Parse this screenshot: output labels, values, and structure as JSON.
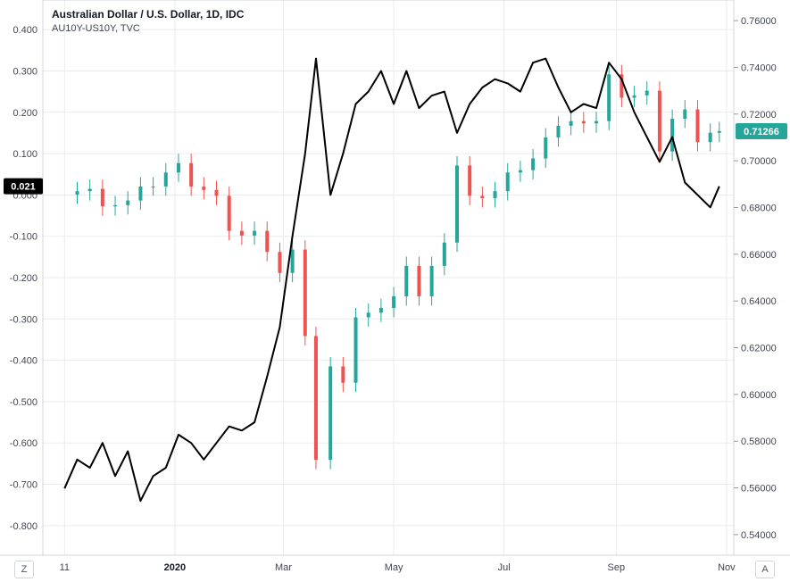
{
  "header": {
    "title": "Australian Dollar / U.S. Dollar, 1D, IDC",
    "subtitle": "AU10Y-US10Y, TVC"
  },
  "controls": {
    "left_button": "Z",
    "right_button": "A"
  },
  "colors": {
    "up": "#26a69a",
    "down": "#ef5350",
    "line": "#000000",
    "grid": "#e9ebef",
    "price_tag": "#26a69a",
    "spread_tag": "#000000"
  },
  "chart_data": {
    "type": "line",
    "title": "Australian Dollar / U.S. Dollar, 1D, IDC",
    "subtitle": "AU10Y-US10Y, TVC",
    "x_ticks": [
      "11",
      "2020",
      "Mar",
      "May",
      "Jul",
      "Sep",
      "Nov"
    ],
    "left_axis": {
      "ticks": [
        "0.400",
        "0.300",
        "0.200",
        "0.100",
        "0.000",
        "-0.100",
        "-0.200",
        "-0.300",
        "-0.400",
        "-0.500",
        "-0.600",
        "-0.700",
        "-0.800"
      ],
      "range": [
        -0.85,
        0.45
      ]
    },
    "right_axis": {
      "ticks": [
        "0.76000",
        "0.74000",
        "0.72000",
        "0.70000",
        "0.68000",
        "0.66000",
        "0.64000",
        "0.62000",
        "0.60000",
        "0.58000",
        "0.56000",
        "0.54000"
      ],
      "range": [
        0.535,
        0.765
      ]
    },
    "last_values": {
      "spread": "0.021",
      "price": "0.71266"
    },
    "grid": true,
    "series": [
      {
        "name": "AUDUSD",
        "style": "candlestick",
        "axis": "right",
        "points": [
          [
            "2019-11-01",
            0.6855
          ],
          [
            "2019-11-08",
            0.687
          ],
          [
            "2019-11-15",
            0.688
          ],
          [
            "2019-11-22",
            0.6805
          ],
          [
            "2019-11-29",
            0.681
          ],
          [
            "2019-12-06",
            0.683
          ],
          [
            "2019-12-13",
            0.689
          ],
          [
            "2019-12-20",
            0.689
          ],
          [
            "2019-12-27",
            0.695
          ],
          [
            "2020-01-03",
            0.699
          ],
          [
            "2020-01-10",
            0.689
          ],
          [
            "2020-01-17",
            0.6875
          ],
          [
            "2020-01-24",
            0.685
          ],
          [
            "2020-01-31",
            0.67
          ],
          [
            "2020-02-07",
            0.668
          ],
          [
            "2020-02-14",
            0.67
          ],
          [
            "2020-02-21",
            0.661
          ],
          [
            "2020-02-28",
            0.652
          ],
          [
            "2020-03-06",
            0.662
          ],
          [
            "2020-03-13",
            0.625
          ],
          [
            "2020-03-19",
            0.572
          ],
          [
            "2020-03-27",
            0.612
          ],
          [
            "2020-04-03",
            0.605
          ],
          [
            "2020-04-10",
            0.633
          ],
          [
            "2020-04-17",
            0.635
          ],
          [
            "2020-04-24",
            0.637
          ],
          [
            "2020-05-01",
            0.642
          ],
          [
            "2020-05-08",
            0.655
          ],
          [
            "2020-05-15",
            0.642
          ],
          [
            "2020-05-22",
            0.655
          ],
          [
            "2020-05-29",
            0.665
          ],
          [
            "2020-06-05",
            0.698
          ],
          [
            "2020-06-12",
            0.685
          ],
          [
            "2020-06-19",
            0.684
          ],
          [
            "2020-06-26",
            0.687
          ],
          [
            "2020-07-03",
            0.695
          ],
          [
            "2020-07-10",
            0.696
          ],
          [
            "2020-07-17",
            0.701
          ],
          [
            "2020-07-24",
            0.71
          ],
          [
            "2020-07-31",
            0.715
          ],
          [
            "2020-08-07",
            0.717
          ],
          [
            "2020-08-14",
            0.716
          ],
          [
            "2020-08-21",
            0.717
          ],
          [
            "2020-08-28",
            0.737
          ],
          [
            "2020-09-04",
            0.727
          ],
          [
            "2020-09-11",
            0.728
          ],
          [
            "2020-09-18",
            0.73
          ],
          [
            "2020-09-25",
            0.704
          ],
          [
            "2020-10-02",
            0.718
          ],
          [
            "2020-10-09",
            0.722
          ],
          [
            "2020-10-16",
            0.708
          ],
          [
            "2020-10-23",
            0.712
          ],
          [
            "2020-10-28",
            0.7127
          ]
        ]
      },
      {
        "name": "AU10Y-US10Y",
        "style": "line",
        "axis": "left",
        "points": [
          [
            "2019-11-01",
            -0.71
          ],
          [
            "2019-11-08",
            -0.64
          ],
          [
            "2019-11-15",
            -0.66
          ],
          [
            "2019-11-22",
            -0.6
          ],
          [
            "2019-11-29",
            -0.68
          ],
          [
            "2019-12-06",
            -0.62
          ],
          [
            "2019-12-13",
            -0.74
          ],
          [
            "2019-12-20",
            -0.68
          ],
          [
            "2019-12-27",
            -0.66
          ],
          [
            "2020-01-03",
            -0.58
          ],
          [
            "2020-01-10",
            -0.6
          ],
          [
            "2020-01-17",
            -0.64
          ],
          [
            "2020-01-24",
            -0.6
          ],
          [
            "2020-01-31",
            -0.56
          ],
          [
            "2020-02-07",
            -0.57
          ],
          [
            "2020-02-14",
            -0.55
          ],
          [
            "2020-02-21",
            -0.44
          ],
          [
            "2020-02-28",
            -0.32
          ],
          [
            "2020-03-06",
            -0.1
          ],
          [
            "2020-03-13",
            0.1
          ],
          [
            "2020-03-19",
            0.33
          ],
          [
            "2020-03-27",
            0.0
          ],
          [
            "2020-04-03",
            0.1
          ],
          [
            "2020-04-10",
            0.22
          ],
          [
            "2020-04-17",
            0.25
          ],
          [
            "2020-04-24",
            0.3
          ],
          [
            "2020-05-01",
            0.22
          ],
          [
            "2020-05-08",
            0.3
          ],
          [
            "2020-05-15",
            0.21
          ],
          [
            "2020-05-22",
            0.24
          ],
          [
            "2020-05-29",
            0.25
          ],
          [
            "2020-06-05",
            0.15
          ],
          [
            "2020-06-12",
            0.22
          ],
          [
            "2020-06-19",
            0.26
          ],
          [
            "2020-06-26",
            0.28
          ],
          [
            "2020-07-03",
            0.27
          ],
          [
            "2020-07-10",
            0.25
          ],
          [
            "2020-07-17",
            0.32
          ],
          [
            "2020-07-24",
            0.33
          ],
          [
            "2020-07-31",
            0.26
          ],
          [
            "2020-08-07",
            0.2
          ],
          [
            "2020-08-14",
            0.22
          ],
          [
            "2020-08-21",
            0.21
          ],
          [
            "2020-08-28",
            0.32
          ],
          [
            "2020-09-04",
            0.28
          ],
          [
            "2020-09-11",
            0.2
          ],
          [
            "2020-09-18",
            0.14
          ],
          [
            "2020-09-25",
            0.08
          ],
          [
            "2020-10-02",
            0.14
          ],
          [
            "2020-10-09",
            0.03
          ],
          [
            "2020-10-16",
            0.0
          ],
          [
            "2020-10-23",
            -0.03
          ],
          [
            "2020-10-28",
            0.021
          ]
        ]
      }
    ]
  }
}
